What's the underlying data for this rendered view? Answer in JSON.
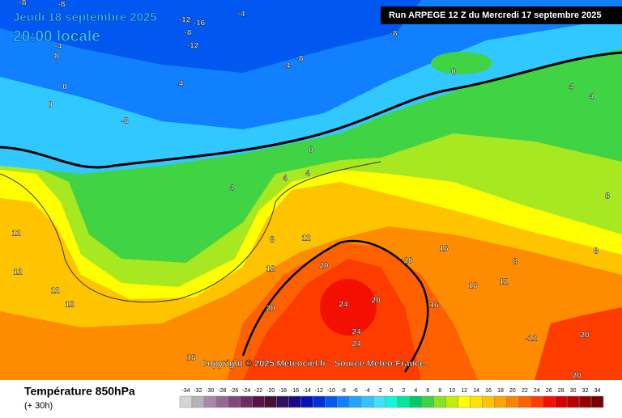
{
  "header": {
    "date": "Jeudi 18 septembre 2025",
    "time": "20:00 locale",
    "run": "Run ARPEGE 12 Z du Mercredi 17 septembre 2025"
  },
  "copyright": "Copyright © 2025 Meteociel.fr - Source Meteo-France",
  "footer": {
    "title": "Température 850hPa",
    "lead": "(+ 30h)"
  },
  "contour_labels": [
    -8,
    -12,
    -16,
    -8,
    -12,
    -4,
    -4,
    -8,
    -8,
    -8,
    -4,
    -4,
    -8,
    -8,
    0,
    0,
    0,
    0,
    4,
    4,
    4,
    4,
    4,
    8,
    8,
    12,
    12,
    12,
    12,
    12,
    12,
    20,
    20,
    24,
    20,
    20,
    24,
    24,
    16,
    16,
    16,
    12,
    8,
    8,
    20,
    16,
    20,
    -12
  ],
  "legend": {
    "labels": [
      -34,
      -32,
      -30,
      -28,
      -26,
      -24,
      -22,
      -20,
      -18,
      -16,
      -14,
      -12,
      -10,
      -8,
      -6,
      -4,
      -2,
      0,
      2,
      4,
      6,
      8,
      10,
      12,
      14,
      16,
      18,
      20,
      22,
      24,
      26,
      28,
      30,
      32,
      34
    ],
    "colors": [
      "#d4d4d4",
      "#b4b4b4",
      "#a888a8",
      "#946894",
      "#80487c",
      "#6c2c64",
      "#5a1048",
      "#441034",
      "#301060",
      "#1c0a84",
      "#0a10b4",
      "#0030dc",
      "#0058f0",
      "#1080ff",
      "#20a4ff",
      "#30c4ff",
      "#40e0ff",
      "#10f8d8",
      "#00e89c",
      "#00cc64",
      "#40d444",
      "#88e420",
      "#c4f000",
      "#ffff00",
      "#ffe400",
      "#ffc400",
      "#ffa400",
      "#ff8400",
      "#ff6000",
      "#ff3c00",
      "#f41000",
      "#d80000",
      "#b80000",
      "#980000",
      "#780000"
    ]
  }
}
